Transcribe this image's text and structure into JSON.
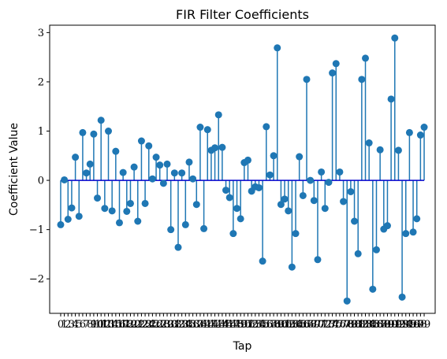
{
  "chart_data": {
    "type": "stem",
    "title": "FIR Filter Coefficients",
    "xlabel": "Tap",
    "ylabel": "Coefficient Value",
    "xlim": [
      -3,
      102
    ],
    "ylim": [
      -2.7,
      3.15
    ],
    "yticks": [
      -2,
      -1,
      0,
      1,
      2,
      3
    ],
    "ytick_labels": [
      "−2",
      "−1",
      "0",
      "1",
      "2",
      "3"
    ],
    "colors": {
      "stem": "#1f77b4",
      "baseline": "#0000cc"
    },
    "x": [
      0,
      1,
      2,
      3,
      4,
      5,
      6,
      7,
      8,
      9,
      10,
      11,
      12,
      13,
      14,
      15,
      16,
      17,
      18,
      19,
      20,
      21,
      22,
      23,
      24,
      25,
      26,
      27,
      28,
      29,
      30,
      31,
      32,
      33,
      34,
      35,
      36,
      37,
      38,
      39,
      40,
      41,
      42,
      43,
      44,
      45,
      46,
      47,
      48,
      49,
      50,
      51,
      52,
      53,
      54,
      55,
      56,
      57,
      58,
      59,
      60,
      61,
      62,
      63,
      64,
      65,
      66,
      67,
      68,
      69,
      70,
      71,
      72,
      73,
      74,
      75,
      76,
      77,
      78,
      79,
      80,
      81,
      82,
      83,
      84,
      85,
      86,
      87,
      88,
      89,
      90,
      91,
      92,
      93,
      94,
      95,
      96,
      97,
      98,
      99
    ],
    "values": [
      -0.9,
      0.01,
      -0.79,
      -0.56,
      0.47,
      -0.73,
      0.97,
      0.15,
      0.33,
      0.94,
      -0.36,
      1.22,
      -0.57,
      1.0,
      -0.62,
      0.59,
      -0.86,
      0.16,
      -0.63,
      -0.47,
      0.27,
      -0.83,
      0.8,
      -0.47,
      0.7,
      0.03,
      0.47,
      0.31,
      -0.06,
      0.33,
      -1.0,
      0.15,
      -1.36,
      0.15,
      -0.9,
      0.37,
      0.03,
      -0.49,
      1.08,
      -0.98,
      1.03,
      0.61,
      0.66,
      1.33,
      0.67,
      -0.2,
      -0.35,
      -1.08,
      -0.57,
      -0.78,
      0.36,
      0.41,
      -0.22,
      -0.13,
      -0.15,
      -1.64,
      1.09,
      0.11,
      0.5,
      2.69,
      -0.49,
      -0.38,
      -0.62,
      -1.76,
      -1.08,
      0.48,
      -0.31,
      2.05,
      0.0,
      -0.41,
      -1.61,
      0.17,
      -0.57,
      -0.04,
      2.18,
      2.37,
      0.17,
      -0.43,
      -2.45,
      -0.23,
      -0.83,
      -1.49,
      2.05,
      2.48,
      0.76,
      -2.21,
      -1.41,
      0.62,
      -0.99,
      -0.92,
      1.65,
      2.89,
      0.61,
      -2.37,
      -1.08,
      0.97,
      -1.05,
      -0.78,
      0.92,
      1.08
    ],
    "xtick_labels": [
      "0",
      "1",
      "2",
      "3",
      "4",
      "5",
      "6",
      "7",
      "8",
      "9",
      "10",
      "11",
      "12",
      "13",
      "14",
      "15",
      "16",
      "17",
      "18",
      "19",
      "20",
      "21",
      "22",
      "23",
      "24",
      "25",
      "26",
      "27",
      "28",
      "29",
      "30",
      "31",
      "32",
      "33",
      "34",
      "35",
      "36",
      "37",
      "38",
      "39",
      "40",
      "41",
      "42",
      "43",
      "44",
      "45",
      "46",
      "47",
      "48",
      "49",
      "50",
      "51",
      "52",
      "53",
      "54",
      "55",
      "56",
      "57",
      "58",
      "59",
      "60",
      "61",
      "62",
      "63",
      "64",
      "65",
      "66",
      "67",
      "68",
      "69",
      "70",
      "71",
      "72",
      "73",
      "74",
      "75",
      "76",
      "77",
      "78",
      "79",
      "80",
      "81",
      "82",
      "83",
      "84",
      "85",
      "86",
      "87",
      "88",
      "89",
      "90",
      "91",
      "92",
      "93",
      "94",
      "95",
      "96",
      "97",
      "98",
      "99"
    ]
  }
}
